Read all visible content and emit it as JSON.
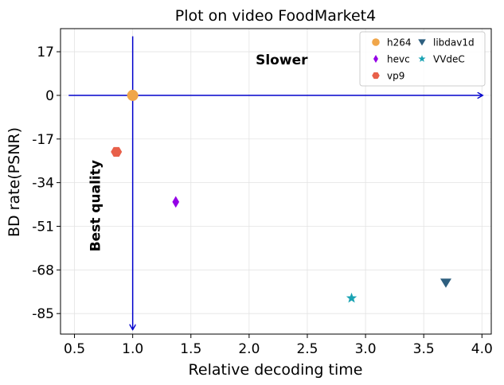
{
  "chart_data": {
    "type": "scatter",
    "title": "Plot on video FoodMarket4",
    "xlabel": "Relative decoding time",
    "ylabel": "BD rate(PSNR)",
    "xlim": [
      0.38,
      4.08
    ],
    "ylim": [
      -93,
      26
    ],
    "xticks": [
      0.5,
      1.0,
      1.5,
      2.0,
      2.5,
      3.0,
      3.5,
      4.0
    ],
    "xtick_labels": [
      "0.5",
      "1.0",
      "1.5",
      "2.0",
      "2.5",
      "3.0",
      "3.5",
      "4.0"
    ],
    "yticks": [
      17,
      0,
      -17,
      -34,
      -51,
      -68,
      -85
    ],
    "ytick_labels": [
      "17",
      "0",
      "-17",
      "-34",
      "-51",
      "-68",
      "-85"
    ],
    "grid": true,
    "legend_position": "top-right",
    "series": [
      {
        "name": "h264",
        "x": [
          1.0
        ],
        "y": [
          0
        ],
        "color": "#f0a64a",
        "marker": "circle"
      },
      {
        "name": "hevc",
        "x": [
          1.37
        ],
        "y": [
          -41.5
        ],
        "color": "#9400e6",
        "marker": "diamond"
      },
      {
        "name": "vp9",
        "x": [
          0.86
        ],
        "y": [
          -22
        ],
        "color": "#e8604a",
        "marker": "hexagon"
      },
      {
        "name": "libdav1d",
        "x": [
          3.69
        ],
        "y": [
          -73
        ],
        "color": "#2e5f7f",
        "marker": "triangle-down"
      },
      {
        "name": "VVdeC",
        "x": [
          2.88
        ],
        "y": [
          -79
        ],
        "color": "#1aa3b3",
        "marker": "star"
      }
    ],
    "annotations": [
      {
        "text": "Slower",
        "x": 2.28,
        "y": 12
      },
      {
        "text": "Best quality",
        "x": 0.72,
        "y": -43,
        "rotation": -90
      }
    ],
    "reference_arrows": [
      {
        "from": [
          0.45,
          0
        ],
        "to": [
          4.0,
          0
        ]
      },
      {
        "from": [
          1.0,
          23
        ],
        "to": [
          1.0,
          -91
        ]
      }
    ],
    "arrow_color": "#0000cc"
  }
}
